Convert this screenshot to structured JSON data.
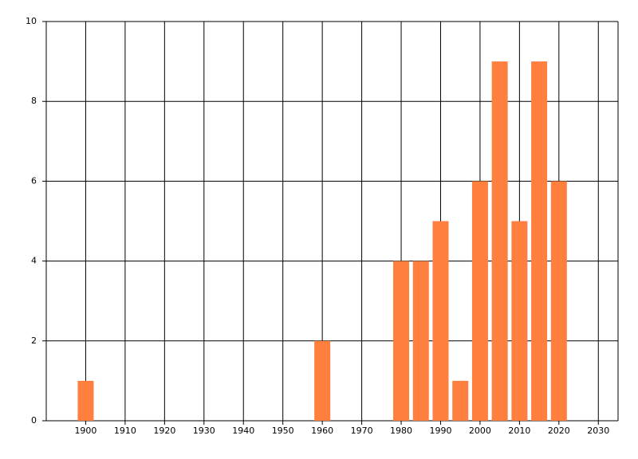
{
  "chart_data": {
    "type": "bar",
    "x": [
      1900,
      1960,
      1980,
      1985,
      1990,
      1995,
      2000,
      2005,
      2010,
      2015,
      2020
    ],
    "values": [
      1,
      2,
      4,
      4,
      5,
      1,
      6,
      9,
      5,
      9,
      6
    ],
    "color": "#ff7f3f",
    "xlim": [
      1890,
      2035
    ],
    "xticks": [
      1900,
      1910,
      1920,
      1930,
      1940,
      1950,
      1960,
      1970,
      1980,
      1990,
      2000,
      2010,
      2020,
      2030
    ],
    "ylim": [
      0,
      10
    ],
    "yticks": [
      0,
      2,
      4,
      6,
      8,
      10
    ],
    "grid": true
  }
}
